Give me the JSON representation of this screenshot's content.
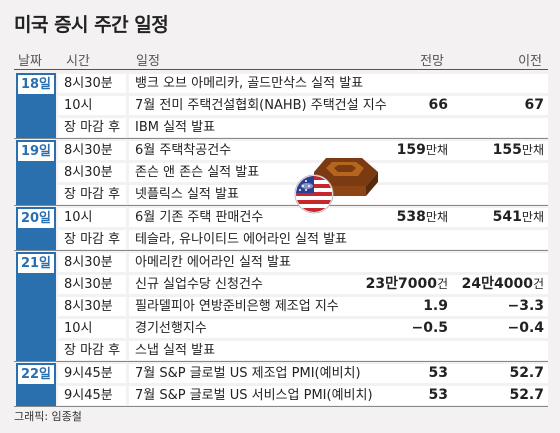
{
  "title": "미국 증시 주간 일정",
  "header": {
    "date": "날짜",
    "time": "시간",
    "event": "일정",
    "forecast": "전망",
    "previous": "이전"
  },
  "days": [
    {
      "date": "18일",
      "rows": [
        {
          "time": "8시30분",
          "event": "뱅크 오브 아메리카, 골드만삭스 실적 발표",
          "forecast": "",
          "forecast_unit": "",
          "previous": "",
          "previous_unit": ""
        },
        {
          "time": "10시",
          "event": "7월 전미 주택건설협회(NAHB) 주택건설 지수",
          "forecast": "66",
          "forecast_unit": "",
          "previous": "67",
          "previous_unit": ""
        },
        {
          "time": "장 마감 후",
          "event": "IBM 실적 발표",
          "forecast": "",
          "forecast_unit": "",
          "previous": "",
          "previous_unit": ""
        }
      ]
    },
    {
      "date": "19일",
      "rows": [
        {
          "time": "8시30분",
          "event": "6월 주택착공건수",
          "forecast": "159",
          "forecast_unit": "만채",
          "previous": "155",
          "previous_unit": "만채"
        },
        {
          "time": "8시30분",
          "event": "존슨 앤 존슨 실적 발표",
          "forecast": "",
          "forecast_unit": "",
          "previous": "",
          "previous_unit": ""
        },
        {
          "time": "장 마감 후",
          "event": "넷플릭스 실적 발표",
          "forecast": "",
          "forecast_unit": "",
          "previous": "",
          "previous_unit": ""
        }
      ]
    },
    {
      "date": "20일",
      "rows": [
        {
          "time": "10시",
          "event": "6월 기존 주택 판매건수",
          "forecast": "538",
          "forecast_unit": "만채",
          "previous": "541",
          "previous_unit": "만채"
        },
        {
          "time": "장 마감 후",
          "event": "테슬라, 유나이티드 에어라인 실적 발표",
          "forecast": "",
          "forecast_unit": "",
          "previous": "",
          "previous_unit": ""
        }
      ]
    },
    {
      "date": "21일",
      "rows": [
        {
          "time": "8시30분",
          "event": "아메리칸 에어라인 실적 발표",
          "forecast": "",
          "forecast_unit": "",
          "previous": "",
          "previous_unit": ""
        },
        {
          "time": "8시30분",
          "event": "신규 실업수당 신청건수",
          "forecast": "23만7000",
          "forecast_unit": "건",
          "previous": "24만4000",
          "previous_unit": "건"
        },
        {
          "time": "8시30분",
          "event": "필라델피아 연방준비은행 제조업 지수",
          "forecast": "1.9",
          "forecast_unit": "",
          "previous": "−3.3",
          "previous_unit": ""
        },
        {
          "time": "10시",
          "event": "경기선행지수",
          "forecast": "−0.5",
          "forecast_unit": "",
          "previous": "−0.4",
          "previous_unit": ""
        },
        {
          "time": "장 마감 후",
          "event": "스냅 실적 발표",
          "forecast": "",
          "forecast_unit": "",
          "previous": "",
          "previous_unit": ""
        }
      ]
    },
    {
      "date": "22일",
      "rows": [
        {
          "time": "9시45분",
          "event": "7월 S&P 글로벌 US 제조업 PMI(예비치)",
          "forecast": "53",
          "forecast_unit": "",
          "previous": "52.7",
          "previous_unit": ""
        },
        {
          "time": "9시45분",
          "event": "7월 S&P 글로벌 US 서비스업 PMI(예비치)",
          "forecast": "53",
          "forecast_unit": "",
          "previous": "52.7",
          "previous_unit": ""
        }
      ]
    }
  ],
  "credit": "그래픽: 임종철",
  "colors": {
    "accent": "#2a6fae",
    "background": "#f3f1f2",
    "row_bg": "#ffffff"
  }
}
